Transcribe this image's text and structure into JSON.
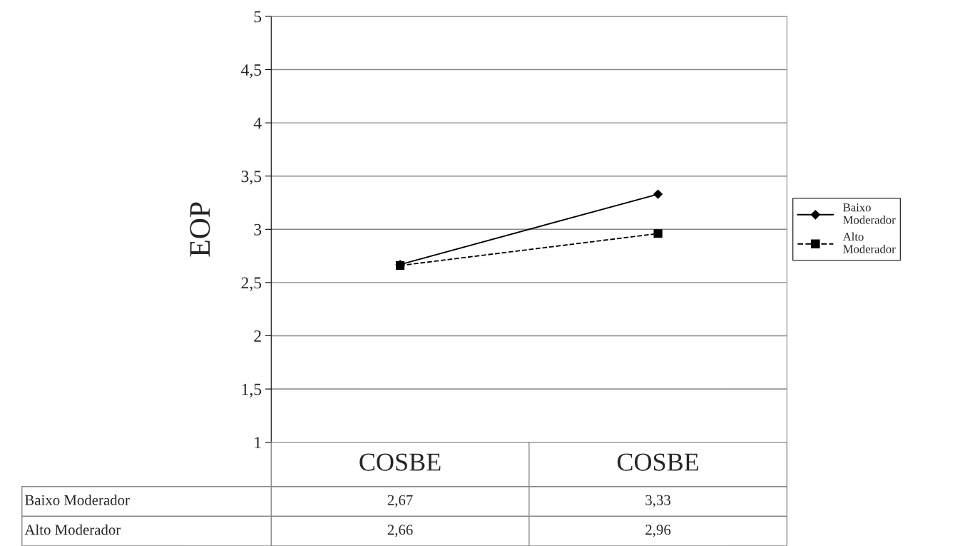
{
  "chart_data": {
    "type": "line",
    "ylabel": "EOP",
    "categories": [
      "COSBE",
      "COSBE"
    ],
    "series": [
      {
        "name": "Baixo Moderador",
        "color": "#000000",
        "values": [
          2.67,
          3.33
        ],
        "value_labels": [
          "2,67",
          "3,33"
        ],
        "marker": "diamond",
        "line_style": "solid"
      },
      {
        "name": "Alto Moderador",
        "color": "#000000",
        "values": [
          2.66,
          2.96
        ],
        "value_labels": [
          "2,66",
          "2,96"
        ],
        "marker": "square",
        "line_style": "dashed"
      }
    ],
    "ylim": [
      1,
      5
    ],
    "yticks": [
      1,
      {
        "value": 1.5,
        "label": "1,5"
      },
      2,
      {
        "value": 2.5,
        "label": "2,5"
      },
      3,
      {
        "value": 3.5,
        "label": "3,5"
      },
      4,
      {
        "value": 4.5,
        "label": "4,5"
      },
      5
    ],
    "grid": "y",
    "legend": "right"
  }
}
